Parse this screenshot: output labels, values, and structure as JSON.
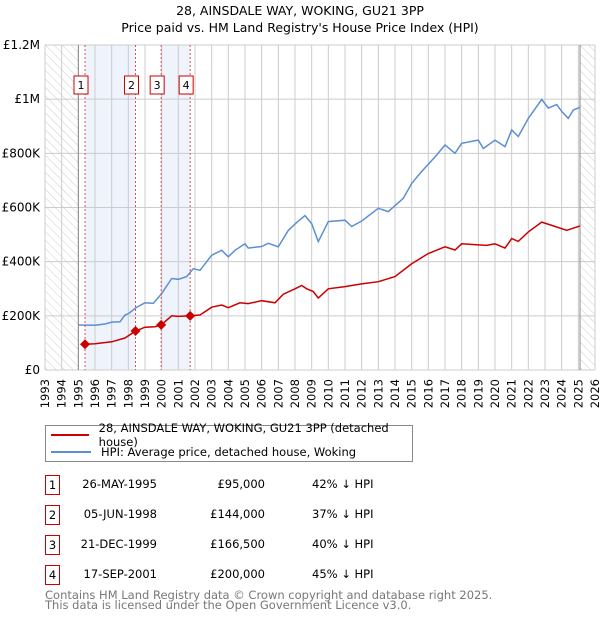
{
  "chart_data": {
    "type": "line",
    "title": "28, AINSDALE WAY, WOKING, GU21 3PP",
    "subtitle": "Price paid vs. HM Land Registry's House Price Index (HPI)",
    "xlim": [
      1993,
      2026
    ],
    "ylim": [
      0,
      1200000
    ],
    "x_ticks": [
      "1993",
      "1994",
      "1995",
      "1996",
      "1997",
      "1998",
      "1999",
      "2000",
      "2001",
      "2002",
      "2003",
      "2004",
      "2005",
      "2006",
      "2007",
      "2008",
      "2009",
      "2010",
      "2011",
      "2012",
      "2013",
      "2014",
      "2015",
      "2016",
      "2017",
      "2018",
      "2019",
      "2020",
      "2021",
      "2022",
      "2023",
      "2024",
      "2025",
      "2026"
    ],
    "y_ticks": [
      {
        "value": 0,
        "label": "£0"
      },
      {
        "value": 200000,
        "label": "£200K"
      },
      {
        "value": 400000,
        "label": "£400K"
      },
      {
        "value": 600000,
        "label": "£600K"
      },
      {
        "value": 800000,
        "label": "£800K"
      },
      {
        "value": 1000000,
        "label": "£1M"
      },
      {
        "value": 1200000,
        "label": "£1.2M"
      }
    ],
    "grid": true,
    "hatched_ranges": [
      [
        1993,
        1995
      ],
      [
        2025.1,
        2026
      ]
    ],
    "shaded_ranges": [
      [
        1995.4,
        1998.43
      ],
      [
        1999.97,
        2001.71
      ]
    ],
    "series": [
      {
        "name": "28, AINSDALE WAY, WOKING, GU21 3PP (detached house)",
        "color": "#cc0000",
        "points": [
          [
            1995.4,
            95000
          ],
          [
            1996,
            97000
          ],
          [
            1997,
            104000
          ],
          [
            1997.8,
            118000
          ],
          [
            1998.43,
            144000
          ],
          [
            1999,
            158000
          ],
          [
            1999.6,
            160000
          ],
          [
            1999.97,
            166500
          ],
          [
            2000.6,
            200000
          ],
          [
            2001,
            198000
          ],
          [
            2001.71,
            200000
          ],
          [
            2002.3,
            203000
          ],
          [
            2003,
            232000
          ],
          [
            2003.6,
            240000
          ],
          [
            2004,
            230000
          ],
          [
            2004.7,
            248000
          ],
          [
            2005.2,
            245000
          ],
          [
            2006,
            256000
          ],
          [
            2006.8,
            248000
          ],
          [
            2007.3,
            280000
          ],
          [
            2008,
            300000
          ],
          [
            2008.4,
            312000
          ],
          [
            2008.7,
            300000
          ],
          [
            2009.1,
            290000
          ],
          [
            2009.4,
            266000
          ],
          [
            2010,
            300000
          ],
          [
            2011,
            308000
          ],
          [
            2012,
            318000
          ],
          [
            2013,
            326000
          ],
          [
            2014,
            345000
          ],
          [
            2015,
            392000
          ],
          [
            2016,
            430000
          ],
          [
            2017,
            455000
          ],
          [
            2017.6,
            443000
          ],
          [
            2018,
            466000
          ],
          [
            2019,
            462000
          ],
          [
            2019.5,
            460000
          ],
          [
            2020,
            466000
          ],
          [
            2020.6,
            450000
          ],
          [
            2021,
            485000
          ],
          [
            2021.4,
            475000
          ],
          [
            2022,
            510000
          ],
          [
            2022.8,
            546000
          ],
          [
            2023.5,
            532000
          ],
          [
            2024.3,
            516000
          ],
          [
            2025.1,
            532000
          ]
        ]
      },
      {
        "name": "HPI: Average price, detached house, Woking",
        "color": "#5b8fd4",
        "points": [
          [
            1995,
            166000
          ],
          [
            1996,
            165000
          ],
          [
            1996.6,
            170000
          ],
          [
            1997,
            177000
          ],
          [
            1997.5,
            178000
          ],
          [
            1997.8,
            203000
          ],
          [
            1998,
            208000
          ],
          [
            1998.5,
            232000
          ],
          [
            1999,
            248000
          ],
          [
            1999.5,
            246000
          ],
          [
            2000,
            282000
          ],
          [
            2000.6,
            338000
          ],
          [
            2001,
            335000
          ],
          [
            2001.5,
            345000
          ],
          [
            2001.9,
            374000
          ],
          [
            2002.3,
            368000
          ],
          [
            2003,
            424000
          ],
          [
            2003.6,
            442000
          ],
          [
            2004,
            418000
          ],
          [
            2004.4,
            442000
          ],
          [
            2005,
            466000
          ],
          [
            2005.2,
            450000
          ],
          [
            2006,
            456000
          ],
          [
            2006.4,
            468000
          ],
          [
            2007,
            455000
          ],
          [
            2007.6,
            516000
          ],
          [
            2008.1,
            545000
          ],
          [
            2008.6,
            570000
          ],
          [
            2009,
            540000
          ],
          [
            2009.4,
            474000
          ],
          [
            2010,
            548000
          ],
          [
            2011,
            553000
          ],
          [
            2011.4,
            530000
          ],
          [
            2012,
            550000
          ],
          [
            2013,
            597000
          ],
          [
            2013.6,
            585000
          ],
          [
            2014.5,
            634000
          ],
          [
            2015,
            689000
          ],
          [
            2015.5,
            726000
          ],
          [
            2016.5,
            794000
          ],
          [
            2017,
            831000
          ],
          [
            2017.6,
            800000
          ],
          [
            2018,
            837000
          ],
          [
            2019,
            849000
          ],
          [
            2019.3,
            818000
          ],
          [
            2020,
            849000
          ],
          [
            2020.6,
            825000
          ],
          [
            2021,
            886000
          ],
          [
            2021.4,
            862000
          ],
          [
            2022,
            929000
          ],
          [
            2022.8,
            999000
          ],
          [
            2023.2,
            967000
          ],
          [
            2023.7,
            980000
          ],
          [
            2024,
            955000
          ],
          [
            2024.4,
            929000
          ],
          [
            2024.7,
            960000
          ],
          [
            2025.1,
            970000
          ]
        ]
      }
    ],
    "sales": [
      {
        "label": "1",
        "x": 1995.4,
        "y": 95000
      },
      {
        "label": "2",
        "x": 1998.43,
        "y": 144000
      },
      {
        "label": "3",
        "x": 1999.97,
        "y": 166500
      },
      {
        "label": "4",
        "x": 2001.71,
        "y": 200000
      }
    ],
    "legend_placement": "below"
  },
  "table": [
    {
      "num": "1",
      "date": "26-MAY-1995",
      "price": "£95,000",
      "hpi": "42% ↓ HPI"
    },
    {
      "num": "2",
      "date": "05-JUN-1998",
      "price": "£144,000",
      "hpi": "37% ↓ HPI"
    },
    {
      "num": "3",
      "date": "21-DEC-1999",
      "price": "£166,500",
      "hpi": "40% ↓ HPI"
    },
    {
      "num": "4",
      "date": "17-SEP-2001",
      "price": "£200,000",
      "hpi": "45% ↓ HPI"
    }
  ],
  "footer": {
    "line1": "Contains HM Land Registry data © Crown copyright and database right 2025.",
    "line2": "This data is licensed under the Open Government Licence v3.0."
  }
}
